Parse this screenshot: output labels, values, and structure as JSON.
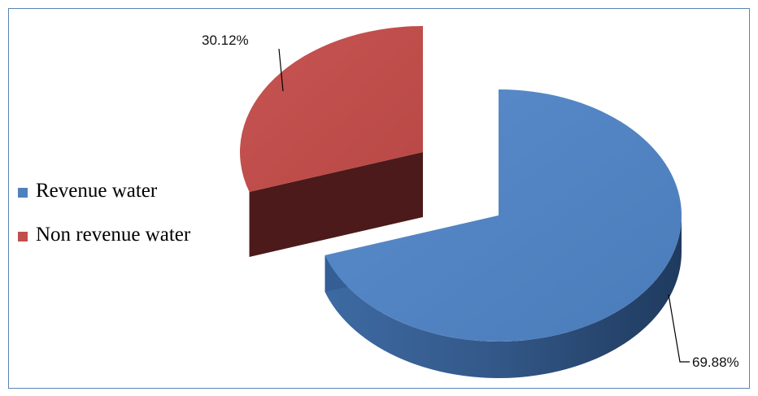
{
  "chart_data": {
    "type": "pie",
    "style": "3d-exploded",
    "categories": [
      "Revenue water",
      "Non revenue water"
    ],
    "values": [
      69.88,
      30.12
    ],
    "data_labels": [
      "69.88%",
      "30.12%"
    ],
    "colors": [
      "#4f81bd",
      "#c0504d"
    ],
    "legend_position": "left",
    "title": ""
  }
}
